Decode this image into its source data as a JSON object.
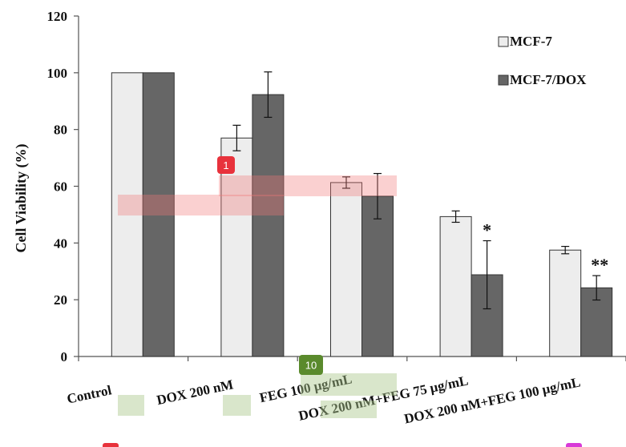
{
  "chart_data": {
    "type": "bar",
    "ylabel": "Cell Viability (%)",
    "xlabel": "",
    "ylim": [
      0,
      120
    ],
    "yticks": [
      0,
      20,
      40,
      60,
      80,
      100,
      120
    ],
    "categories": [
      "Control",
      "DOX 200 nM",
      "FEG 100 μg/mL",
      "DOX 200 nM+FEG 75 μg/mL",
      "DOX 200 nM+FEG 100 μg/mL"
    ],
    "series": [
      {
        "name": "MCF-7",
        "color": "#ededed",
        "values": [
          100,
          77,
          61.3,
          49.3,
          37.5
        ],
        "errors": [
          0,
          4.5,
          2,
          2,
          1.3
        ]
      },
      {
        "name": "MCF-7/DOX",
        "color": "#666666",
        "values": [
          100,
          92.3,
          56.5,
          28.8,
          24.2
        ],
        "errors": [
          0,
          8,
          8,
          12,
          4.3
        ]
      }
    ],
    "significance": [
      {
        "category": 3,
        "series": 1,
        "label": "*"
      },
      {
        "category": 4,
        "series": 1,
        "label": "**"
      }
    ],
    "legend_position": "top-right",
    "grid": false
  },
  "overlay": {
    "markers": [
      {
        "label": "1",
        "color": "#e8323c"
      },
      {
        "label": "10",
        "color": "#5a8a2c"
      }
    ],
    "highlights": [
      {
        "color": "rgba(240,120,120,0.35)"
      },
      {
        "color": "rgba(240,120,120,0.35)"
      },
      {
        "color": "rgba(170,200,140,0.45)"
      },
      {
        "color": "rgba(170,200,140,0.45)"
      },
      {
        "color": "rgba(170,200,140,0.45)"
      },
      {
        "color": "rgba(170,200,140,0.45)"
      }
    ]
  }
}
